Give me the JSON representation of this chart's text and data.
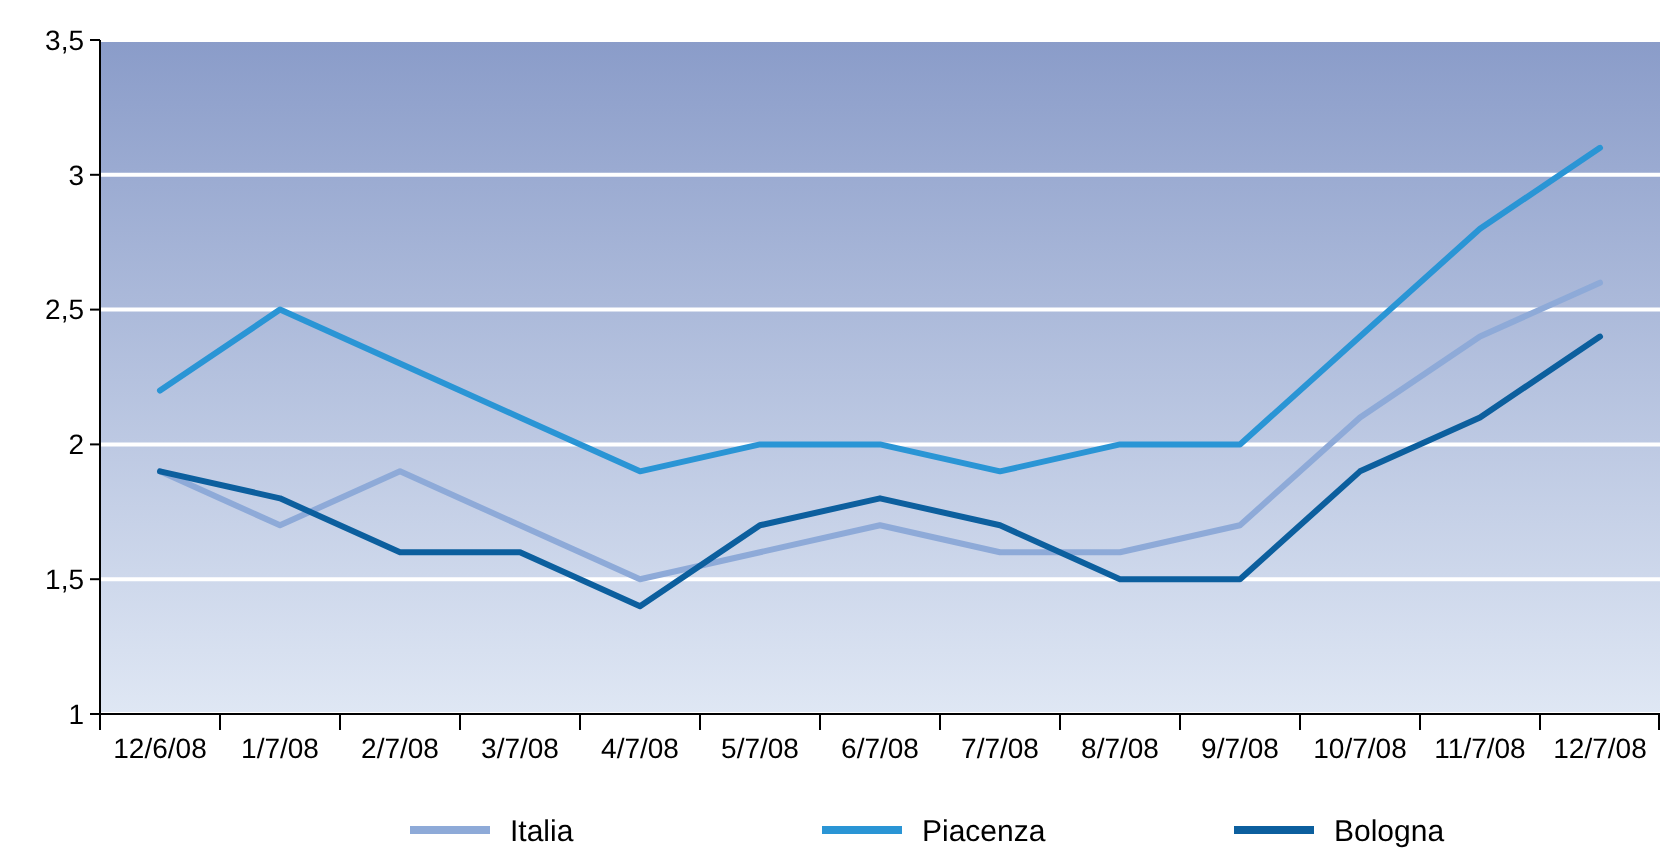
{
  "chart_data": {
    "type": "line",
    "categories": [
      "12/6/08",
      "1/7/08",
      "2/7/08",
      "3/7/08",
      "4/7/08",
      "5/7/08",
      "6/7/08",
      "7/7/08",
      "8/7/08",
      "9/7/08",
      "10/7/08",
      "11/7/08",
      "12/7/08"
    ],
    "series": [
      {
        "name": "Italia",
        "color": "#8eaad8",
        "values": [
          1.9,
          1.7,
          1.9,
          1.7,
          1.5,
          1.6,
          1.7,
          1.6,
          1.6,
          1.7,
          2.1,
          2.4,
          2.6
        ]
      },
      {
        "name": "Piacenza",
        "color": "#2a95d5",
        "values": [
          2.2,
          2.5,
          2.3,
          2.1,
          1.9,
          2.0,
          2.0,
          1.9,
          2.0,
          2.0,
          2.4,
          2.8,
          3.1
        ]
      },
      {
        "name": "Bologna",
        "color": "#0c5f9e",
        "values": [
          1.9,
          1.8,
          1.6,
          1.6,
          1.4,
          1.7,
          1.8,
          1.7,
          1.5,
          1.5,
          1.9,
          2.1,
          2.4
        ]
      }
    ],
    "ylim": [
      1,
      3.5
    ],
    "yticks": [
      1,
      {
        "value": 1.5,
        "label": "1,5"
      },
      2,
      {
        "value": 2.5,
        "label": "2,5"
      },
      3,
      {
        "value": 3.5,
        "label": "3,5"
      }
    ],
    "grid": "y",
    "legend": "bottom",
    "marker": "none",
    "line_style": "solid"
  }
}
